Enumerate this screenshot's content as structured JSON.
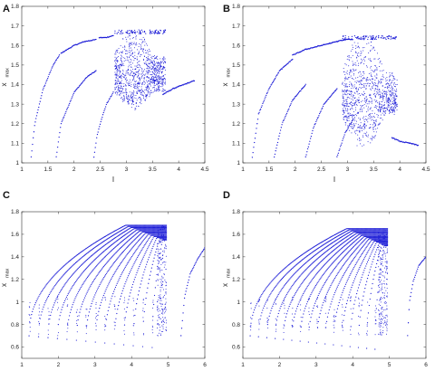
{
  "figure": {
    "bg_color": "#ffffff",
    "point_color": "#1a1ad6",
    "frame_color": "#333333"
  },
  "chart_data": [
    {
      "panel": "A",
      "type": "scatter",
      "xlabel": "I",
      "ylabel": "x",
      "ylabel_sub": "max",
      "xlim": [
        1,
        4.5
      ],
      "ylim": [
        1.0,
        1.8
      ],
      "xticks": [
        "1",
        "1.5",
        "2",
        "2.5",
        "3",
        "3.5",
        "4",
        "4.5"
      ],
      "yticks": [
        "1",
        "1.1",
        "1.2",
        "1.3",
        "1.4",
        "1.5",
        "1.6",
        "1.7",
        "1.8"
      ],
      "grid": false,
      "series": [
        {
          "kind": "curve",
          "x": [
            1.18,
            1.25,
            1.4,
            1.6,
            1.72
          ],
          "y": [
            1.03,
            1.2,
            1.37,
            1.5,
            1.55
          ]
        },
        {
          "kind": "curve",
          "x": [
            1.66,
            1.75,
            2.0,
            2.25,
            2.42
          ],
          "y": [
            1.03,
            1.2,
            1.36,
            1.44,
            1.47
          ]
        },
        {
          "kind": "curve",
          "x": [
            1.75,
            2.0,
            2.2,
            2.42
          ],
          "y": [
            1.56,
            1.6,
            1.62,
            1.63
          ]
        },
        {
          "kind": "curve",
          "x": [
            2.38,
            2.44,
            2.52,
            2.62,
            2.75
          ],
          "y": [
            1.03,
            1.14,
            1.22,
            1.3,
            1.36
          ]
        },
        {
          "kind": "curve",
          "x": [
            2.48,
            2.6,
            2.75
          ],
          "y": [
            1.64,
            1.64,
            1.65
          ]
        },
        {
          "kind": "curve",
          "x": [
            3.7,
            3.9,
            4.1,
            4.3
          ],
          "y": [
            1.35,
            1.38,
            1.4,
            1.42
          ]
        },
        {
          "kind": "chaos",
          "x_range": [
            2.78,
            3.75
          ],
          "y_bands": [
            [
              1.27,
              1.68
            ],
            [
              1.3,
              1.62
            ],
            [
              1.3,
              1.5
            ]
          ]
        }
      ]
    },
    {
      "panel": "B",
      "type": "scatter",
      "xlabel": "I",
      "ylabel": "x",
      "ylabel_sub": "max",
      "xlim": [
        1,
        4.5
      ],
      "ylim": [
        1.0,
        1.8
      ],
      "xticks": [
        "1",
        "1.5",
        "2",
        "2.5",
        "3",
        "3.5",
        "4",
        "4.5"
      ],
      "yticks": [
        "1",
        "1.1",
        "1.2",
        "1.3",
        "1.4",
        "1.5",
        "1.6",
        "1.7",
        "1.8"
      ],
      "grid": false,
      "series": [
        {
          "kind": "curve",
          "x": [
            1.18,
            1.3,
            1.5,
            1.7,
            1.95
          ],
          "y": [
            1.03,
            1.25,
            1.38,
            1.47,
            1.53
          ]
        },
        {
          "kind": "curve",
          "x": [
            1.6,
            1.75,
            1.95,
            2.2
          ],
          "y": [
            1.03,
            1.2,
            1.32,
            1.4
          ]
        },
        {
          "kind": "curve",
          "x": [
            1.95,
            2.2,
            2.5,
            2.8
          ],
          "y": [
            1.55,
            1.58,
            1.6,
            1.62
          ]
        },
        {
          "kind": "curve",
          "x": [
            2.2,
            2.35,
            2.55,
            2.8
          ],
          "y": [
            1.03,
            1.18,
            1.3,
            1.38
          ]
        },
        {
          "kind": "curve",
          "x": [
            2.8,
            2.95,
            3.1
          ],
          "y": [
            1.03,
            1.15,
            1.22
          ]
        },
        {
          "kind": "curve",
          "x": [
            2.8,
            2.95,
            3.1
          ],
          "y": [
            1.62,
            1.63,
            1.63
          ]
        },
        {
          "kind": "curve",
          "x": [
            3.85,
            4.0,
            4.2,
            4.35
          ],
          "y": [
            1.13,
            1.11,
            1.1,
            1.09
          ]
        },
        {
          "kind": "chaos",
          "x_range": [
            2.9,
            3.95
          ],
          "y_bands": [
            [
              1.07,
              1.65
            ],
            [
              1.12,
              1.55
            ],
            [
              1.15,
              1.45
            ]
          ]
        }
      ]
    },
    {
      "panel": "C",
      "type": "scatter",
      "xlabel": "I",
      "ylabel": "x",
      "ylabel_sub": "max",
      "xlim": [
        1,
        6
      ],
      "ylim": [
        0.5,
        1.8
      ],
      "xticks": [
        "1",
        "2",
        "3",
        "4",
        "5",
        "6"
      ],
      "yticks": [
        "0.6",
        "0.8",
        "1",
        "1.2",
        "1.4",
        "1.6",
        "1.8"
      ],
      "grid": false,
      "series": [
        {
          "kind": "fan",
          "x_end": 4.95,
          "y_top": 1.68,
          "y_min": 0.7,
          "branches": 14
        },
        {
          "kind": "curve",
          "x": [
            5.35,
            5.45,
            5.6,
            5.8,
            6.0
          ],
          "y": [
            0.7,
            1.05,
            1.25,
            1.38,
            1.48
          ]
        }
      ]
    },
    {
      "panel": "D",
      "type": "scatter",
      "xlabel": "I",
      "ylabel": "x",
      "ylabel_sub": "max",
      "xlim": [
        1,
        6
      ],
      "ylim": [
        0.5,
        1.8
      ],
      "xticks": [
        "1",
        "2",
        "3",
        "4",
        "5",
        "6"
      ],
      "yticks": [
        "0.6",
        "0.8",
        "1",
        "1.2",
        "1.4",
        "1.6",
        "1.8"
      ],
      "grid": false,
      "series": [
        {
          "kind": "fan",
          "x_end": 4.95,
          "y_top": 1.65,
          "y_min": 0.7,
          "branches": 16
        },
        {
          "kind": "curve",
          "x": [
            5.5,
            5.55,
            5.65,
            5.8,
            6.0
          ],
          "y": [
            0.7,
            1.0,
            1.18,
            1.32,
            1.4
          ]
        }
      ]
    }
  ]
}
